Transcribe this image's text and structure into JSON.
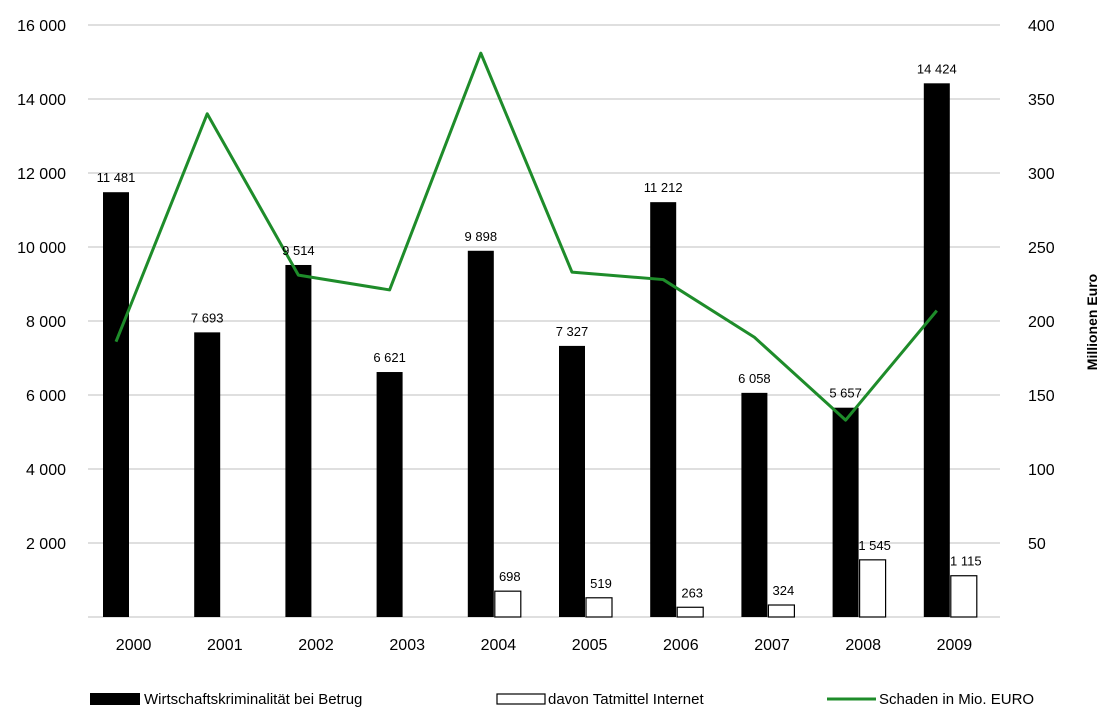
{
  "chart_data": {
    "type": "bar",
    "categories": [
      "2000",
      "2001",
      "2002",
      "2003",
      "2004",
      "2005",
      "2006",
      "2007",
      "2008",
      "2009"
    ],
    "series": [
      {
        "name": "Wirtschaftskriminalität bei Betrug",
        "type": "bar",
        "axis": "left",
        "color": "#000000",
        "values": [
          11481,
          7693,
          9514,
          6621,
          9898,
          7327,
          11212,
          6058,
          5657,
          14424
        ],
        "labels": [
          "11 481",
          "7 693",
          "9 514",
          "6 621",
          "9 898",
          "7 327",
          "11 212",
          "6 058",
          "5 657",
          "14 424"
        ]
      },
      {
        "name": "davon Tatmittel Internet",
        "type": "bar",
        "axis": "left",
        "color": "#ffffff",
        "values": [
          null,
          null,
          null,
          null,
          698,
          519,
          263,
          324,
          1545,
          1115
        ],
        "labels": [
          null,
          null,
          null,
          null,
          "698",
          "519",
          "263",
          "324",
          "1 545",
          "1 115"
        ]
      },
      {
        "name": "Schaden in Mio. EURO",
        "type": "line",
        "axis": "right",
        "color": "#1e8c2a",
        "values": [
          186,
          340,
          231,
          221,
          381,
          233,
          228,
          189,
          133,
          207
        ]
      }
    ],
    "y_left": {
      "range": [
        0,
        16000
      ],
      "ticks": [
        2000,
        4000,
        6000,
        8000,
        10000,
        12000,
        14000,
        16000
      ],
      "tick_labels": [
        "2 000",
        "4 000",
        "6 000",
        "8 000",
        "10 000",
        "12 000",
        "14 000",
        "16 000"
      ]
    },
    "y_right": {
      "label": "Millionen Euro",
      "range": [
        0,
        400
      ],
      "ticks": [
        50,
        100,
        150,
        200,
        250,
        300,
        350,
        400
      ],
      "tick_labels": [
        "50",
        "100",
        "150",
        "200",
        "250",
        "300",
        "350",
        "400"
      ]
    },
    "grid": true,
    "legend": "bottom"
  }
}
